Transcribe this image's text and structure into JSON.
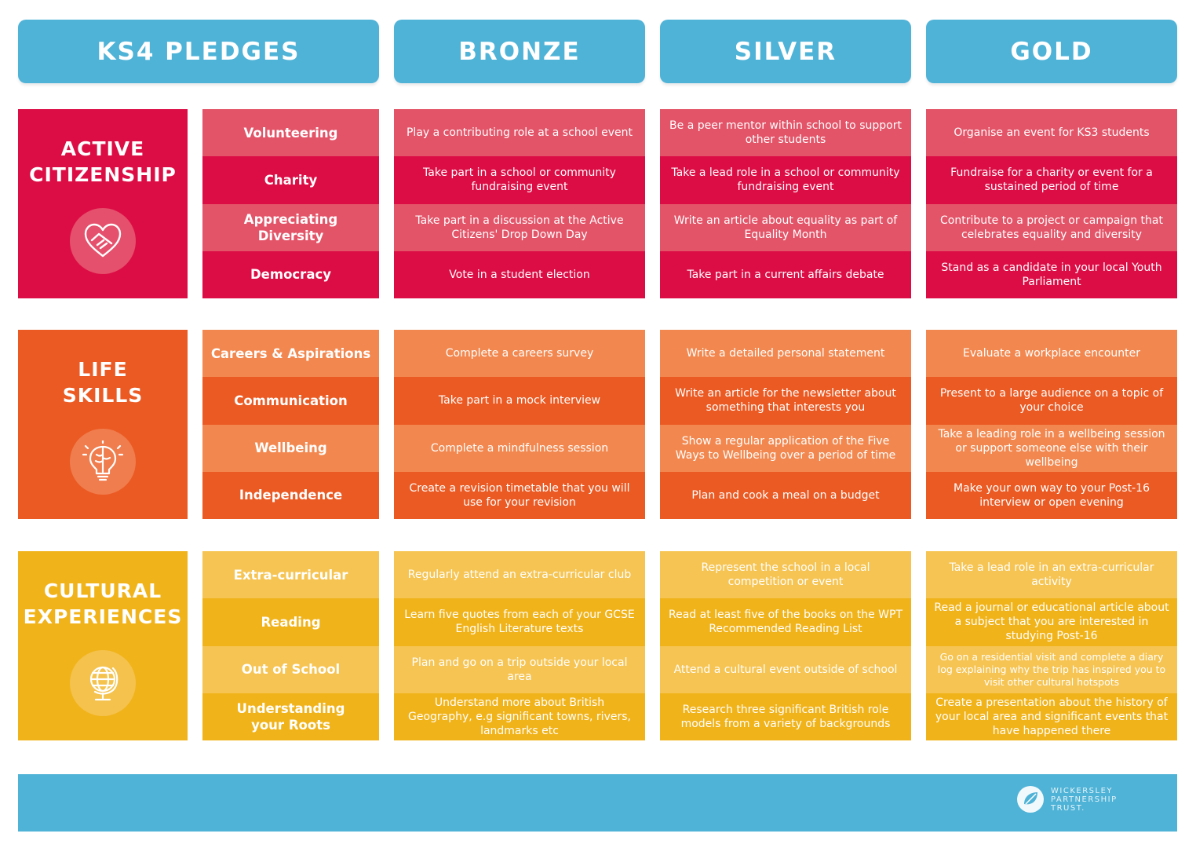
{
  "headers": {
    "pledges": "KS4 PLEDGES",
    "bronze": "BRONZE",
    "silver": "SILVER",
    "gold": "GOLD"
  },
  "colors": {
    "header_blue": "#4fb3d7",
    "citizenship_dark": "#dc0d45",
    "citizenship_light": "#e35468",
    "life_dark": "#eb5a23",
    "life_light": "#f2884f",
    "cultural_dark": "#f1b31a",
    "cultural_light": "#f6c452"
  },
  "sections": [
    {
      "title": "ACTIVE\nCITIZENSHIP",
      "icon": "heart-handshake-icon",
      "rows": [
        {
          "pledge": "Volunteering",
          "bronze": "Play a contributing role at a school event",
          "silver": "Be a peer mentor within school to support other students",
          "gold": "Organise an event for KS3 students"
        },
        {
          "pledge": "Charity",
          "bronze": "Take part in a school or community fundraising event",
          "silver": "Take a lead role in a school or community fundraising event",
          "gold": "Fundraise for a charity or event for a sustained period of time"
        },
        {
          "pledge": "Appreciating Diversity",
          "bronze": "Take part in a discussion at the Active Citizens' Drop Down Day",
          "silver": "Write an article about equality as part of Equality Month",
          "gold": "Contribute to a project or campaign that celebrates equality and diversity"
        },
        {
          "pledge": "Democracy",
          "bronze": "Vote in a student election",
          "silver": "Take part in a current affairs debate",
          "gold": "Stand as a candidate in your local Youth Parliament"
        }
      ]
    },
    {
      "title": "LIFE\nSKILLS",
      "icon": "lightbulb-brain-icon",
      "rows": [
        {
          "pledge": "Careers & Aspirations",
          "bronze": "Complete a careers survey",
          "silver": "Write a detailed personal statement",
          "gold": "Evaluate a workplace encounter"
        },
        {
          "pledge": "Communication",
          "bronze": "Take part in a mock interview",
          "silver": "Write an article for the newsletter about something that interests you",
          "gold": "Present to a large audience on a topic of your choice"
        },
        {
          "pledge": "Wellbeing",
          "bronze": "Complete a mindfulness session",
          "silver": "Show a regular application of the Five Ways to Wellbeing over a period of time",
          "gold": "Take a leading role in a wellbeing session or support someone else with their wellbeing"
        },
        {
          "pledge": "Independence",
          "bronze": "Create a revision timetable that you will use for your revision",
          "silver": "Plan and cook a meal on a budget",
          "gold": "Make your own way to your Post-16 interview or open evening"
        }
      ]
    },
    {
      "title": "CULTURAL\nEXPERIENCES",
      "icon": "globe-icon",
      "rows": [
        {
          "pledge": "Extra-curricular",
          "bronze": "Regularly attend an extra-curricular club",
          "silver": "Represent the school in a local competition or event",
          "gold": "Take a lead role in an extra-curricular activity"
        },
        {
          "pledge": "Reading",
          "bronze": "Learn five quotes from each of your GCSE English Literature texts",
          "silver": "Read at least five of the books on the WPT Recommended Reading List",
          "gold": "Read a journal or educational article about a subject that you are interested in studying Post-16"
        },
        {
          "pledge": "Out of School",
          "bronze": "Plan and go on a trip outside your local area",
          "silver": "Attend a cultural event outside of school",
          "gold": "Go on a residential visit and complete a diary log explaining why the trip has inspired you to visit other cultural hotspots"
        },
        {
          "pledge": "Understanding your Roots",
          "bronze": "Understand more about British Geography, e.g significant towns, rivers, landmarks etc",
          "silver": "Research three significant British role models from a variety of backgrounds",
          "gold": "Create a presentation about the history of your local area and significant events that have happened there"
        }
      ]
    }
  ],
  "footer": {
    "logo_text": "WICKERSLEY\nPARTNERSHIP\nTRUST.",
    "logo_icon": "leaf-circle-icon"
  }
}
